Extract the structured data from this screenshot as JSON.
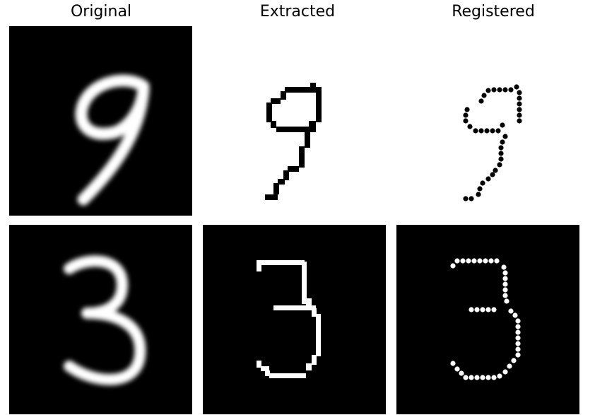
{
  "titles": {
    "original": "Original",
    "extracted": "Extracted",
    "registered": "Registered"
  },
  "colors": {
    "black": "#000000",
    "white": "#ffffff"
  },
  "rows": [
    {
      "digit": "9",
      "original_bg": "black",
      "extracted_bg": "white",
      "registered_bg": "white"
    },
    {
      "digit": "3",
      "original_bg": "black",
      "extracted_bg": "black",
      "registered_bg": "black"
    }
  ]
}
